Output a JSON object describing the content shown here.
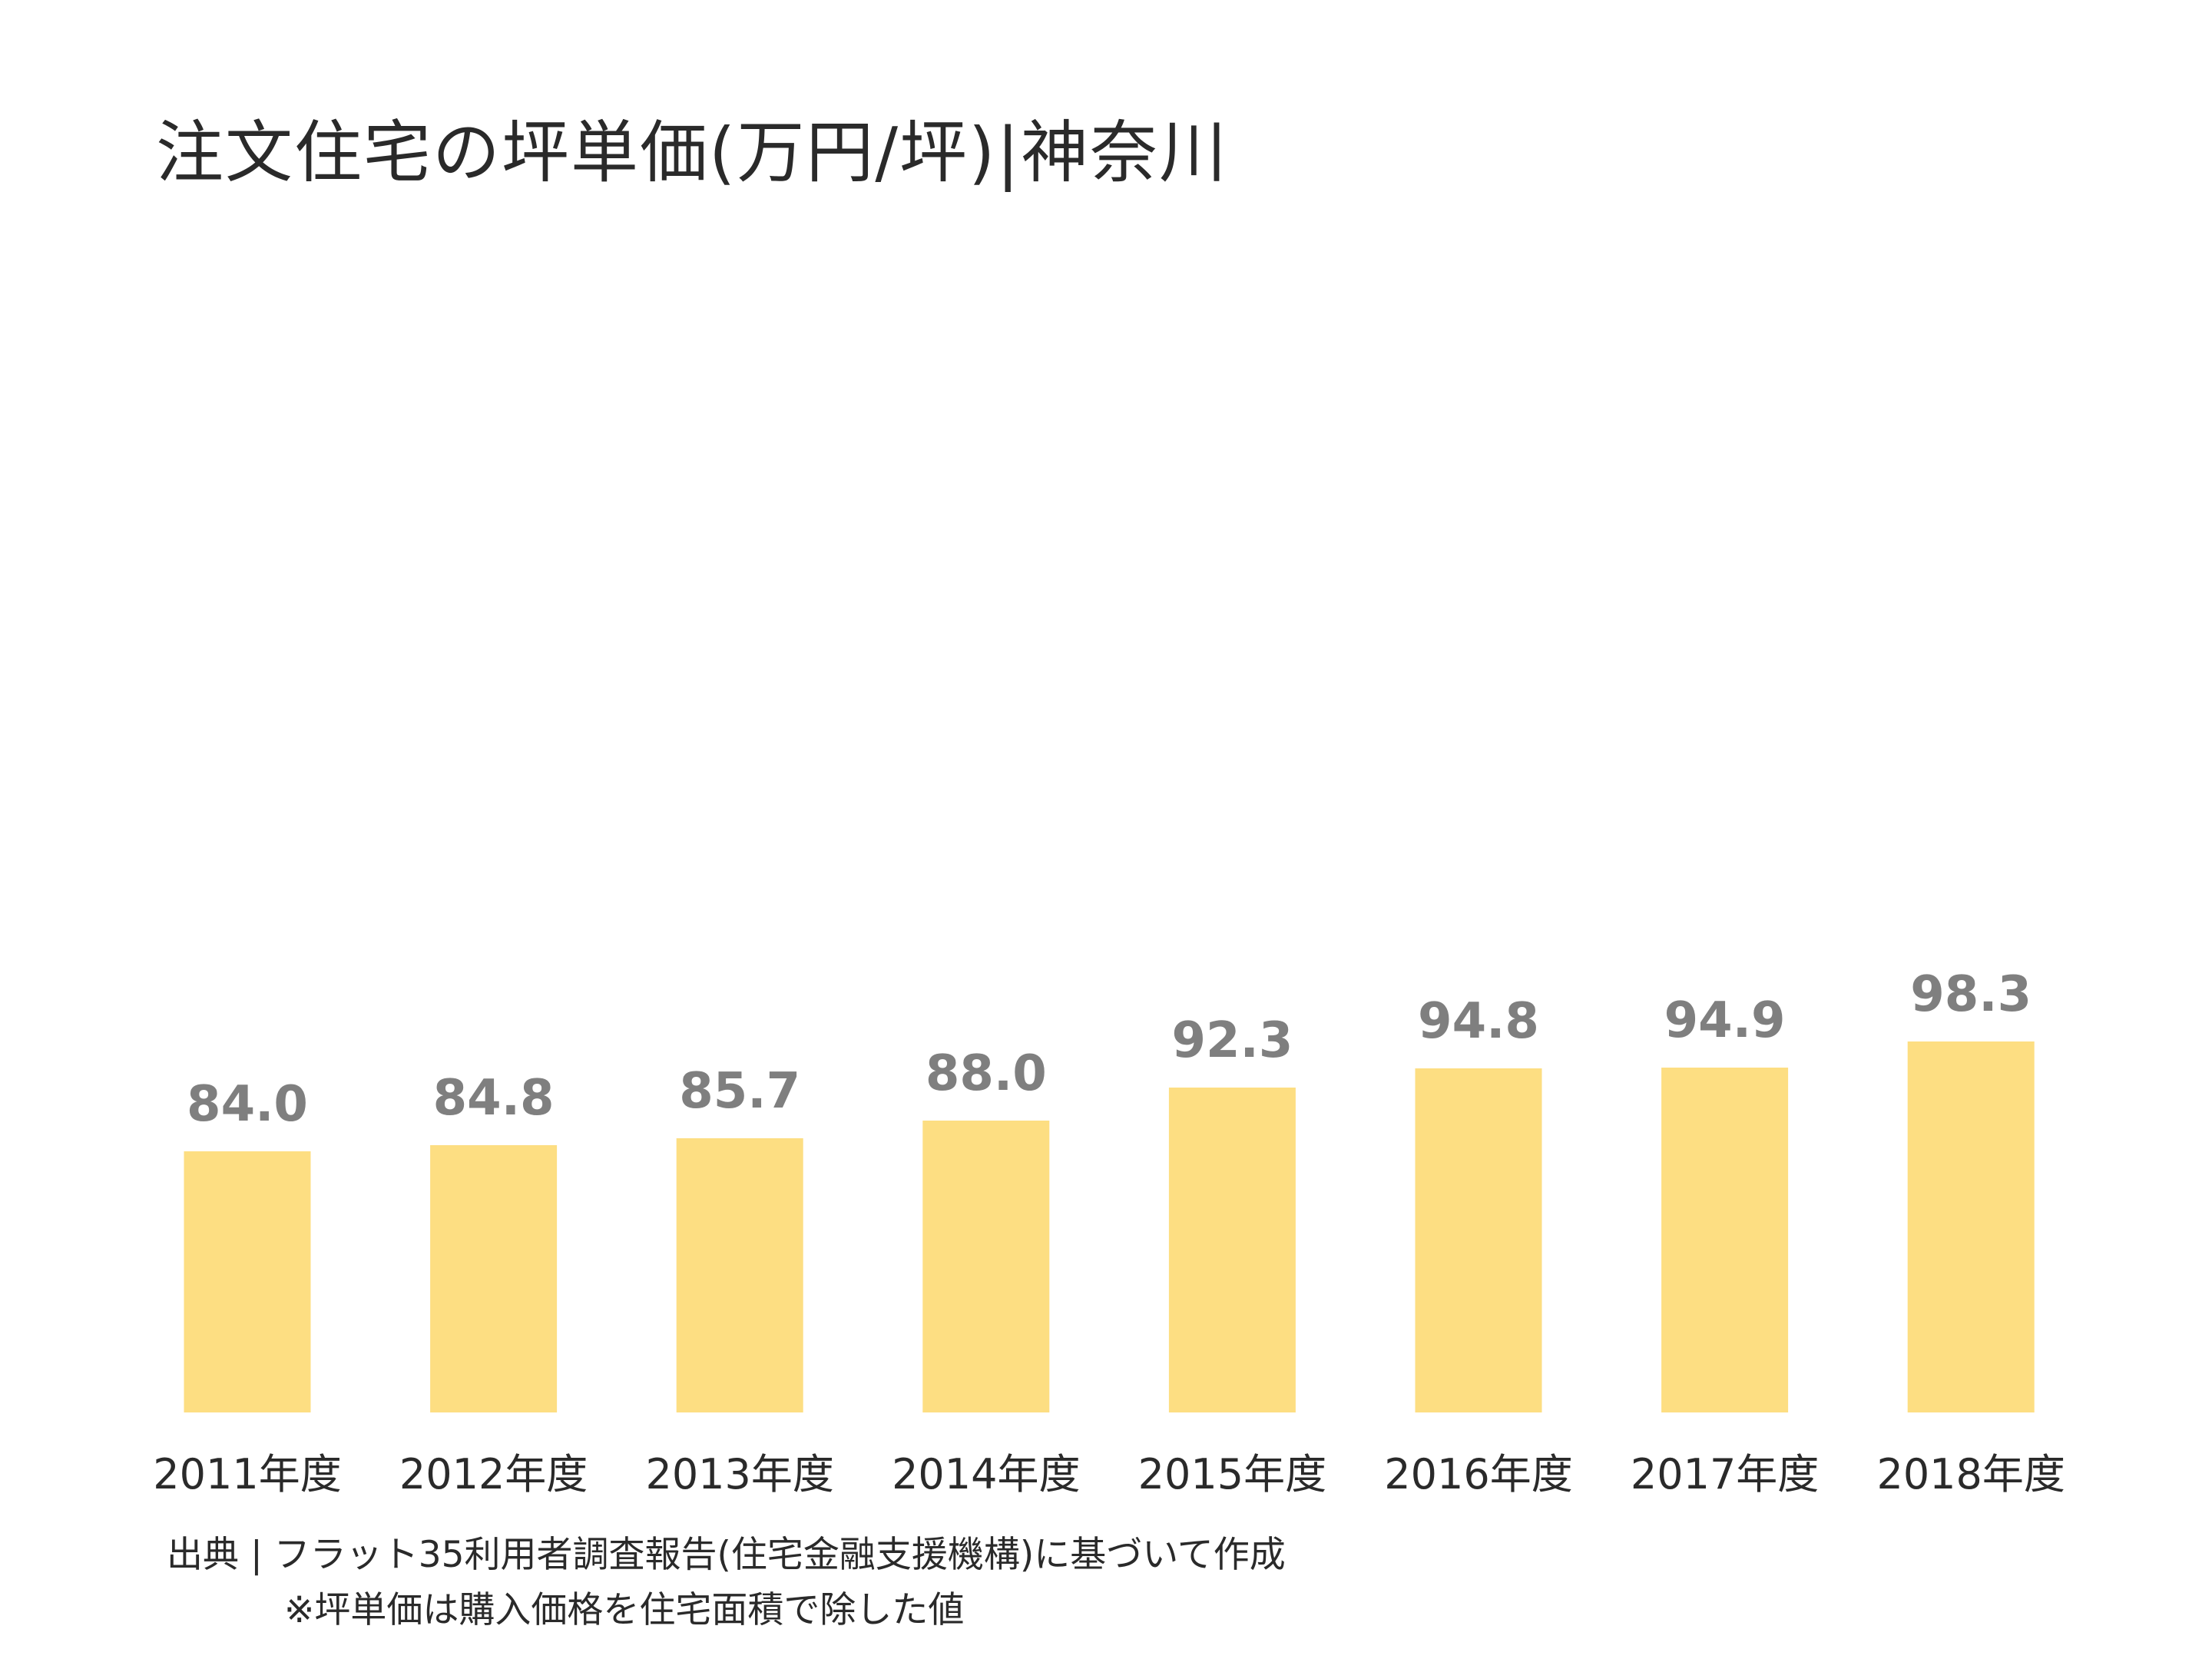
{
  "chart_data": {
    "type": "bar",
    "title": "注文住宅の坪単価(万円/坪)|神奈川",
    "categories": [
      "2011年度",
      "2012年度",
      "2013年度",
      "2014年度",
      "2015年度",
      "2016年度",
      "2017年度",
      "2018年度"
    ],
    "values": [
      84.0,
      84.8,
      85.7,
      88.0,
      92.3,
      94.8,
      94.9,
      98.3
    ],
    "value_labels": [
      "84.0",
      "84.8",
      "85.7",
      "88.0",
      "92.3",
      "94.8",
      "94.9",
      "98.3"
    ],
    "xlabel": "",
    "ylabel": "",
    "ylim": [
      50,
      100
    ],
    "grid": false,
    "legend": "none",
    "bar_color": "#FDDE82",
    "label_color": "#7F7F7F"
  },
  "footer": {
    "source": "出典 | フラット35利用者調査報告(住宅金融支援機構)に基づいて作成",
    "note": "※坪単価は購入価格を住宅面積で除した値"
  },
  "colors": {
    "text": "#2a2a2a",
    "background": "#ffffff"
  }
}
